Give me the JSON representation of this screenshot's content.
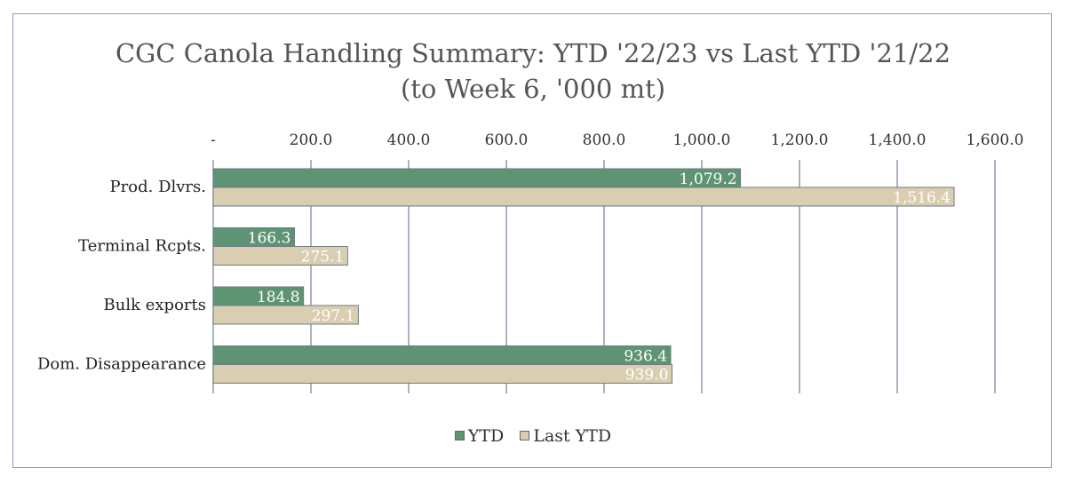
{
  "chart_data": {
    "type": "bar",
    "orientation": "horizontal",
    "title": "CGC Canola Handling Summary: YTD '22/23 vs Last YTD '21/22",
    "subtitle": "(to Week 6, '000 mt)",
    "categories": [
      "Prod. Dlvrs.",
      "Terminal Rcpts.",
      "Bulk exports",
      "Dom. Disappearance"
    ],
    "series": [
      {
        "name": "YTD",
        "values": [
          1079.2,
          166.3,
          184.8,
          936.4
        ],
        "labels": [
          "1,079.2",
          "166.3",
          "184.8",
          "936.4"
        ],
        "color": "#5e9474"
      },
      {
        "name": "Last YTD",
        "values": [
          1516.4,
          275.1,
          297.1,
          939.0
        ],
        "labels": [
          "1,516.4",
          "275.1",
          "297.1",
          "939.0"
        ],
        "color": "#d9ceb0"
      }
    ],
    "x_ticks": [
      0,
      200,
      400,
      600,
      800,
      1000,
      1200,
      1400,
      1600
    ],
    "x_tick_labels": [
      "-",
      "200.0",
      "400.0",
      "600.0",
      "800.0",
      "1,000.0",
      "1,200.0",
      "1,400.0",
      "1,600.0"
    ],
    "xlim": [
      0,
      1600
    ],
    "grid": "vertical",
    "legend_position": "bottom",
    "axis_position": "top"
  }
}
